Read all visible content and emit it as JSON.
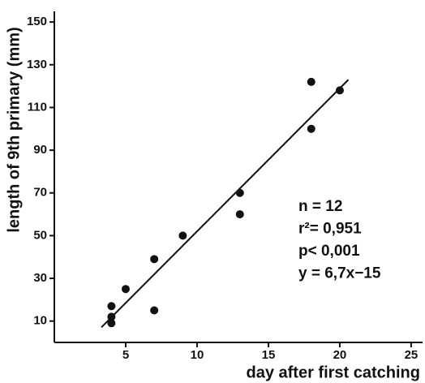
{
  "chart_data": {
    "type": "scatter",
    "x_label": "day after first catching",
    "y_label": "length of 9th primary (mm)",
    "annotations": [
      "n = 12",
      "r²= 0,951",
      "p< 0,001",
      "y = 6,7x−15"
    ],
    "series": [
      {
        "type": "scatter",
        "color": "#111111",
        "x": [
          4,
          4,
          4,
          5,
          7,
          7,
          9,
          13,
          13,
          18,
          18,
          20
        ],
        "values": [
          17,
          12,
          9,
          25,
          39,
          15,
          50,
          70,
          60,
          122,
          100,
          118
        ]
      },
      {
        "type": "line",
        "color": "#111111",
        "x": [
          3.3,
          20.6
        ],
        "values": [
          7.1,
          123.0
        ]
      }
    ],
    "xlim": [
      0,
      25.8
    ],
    "ylim": [
      0,
      155
    ],
    "xticks": [
      5,
      10,
      15,
      20,
      25
    ],
    "yticks": [
      10,
      30,
      50,
      70,
      90,
      110,
      130,
      150
    ]
  }
}
